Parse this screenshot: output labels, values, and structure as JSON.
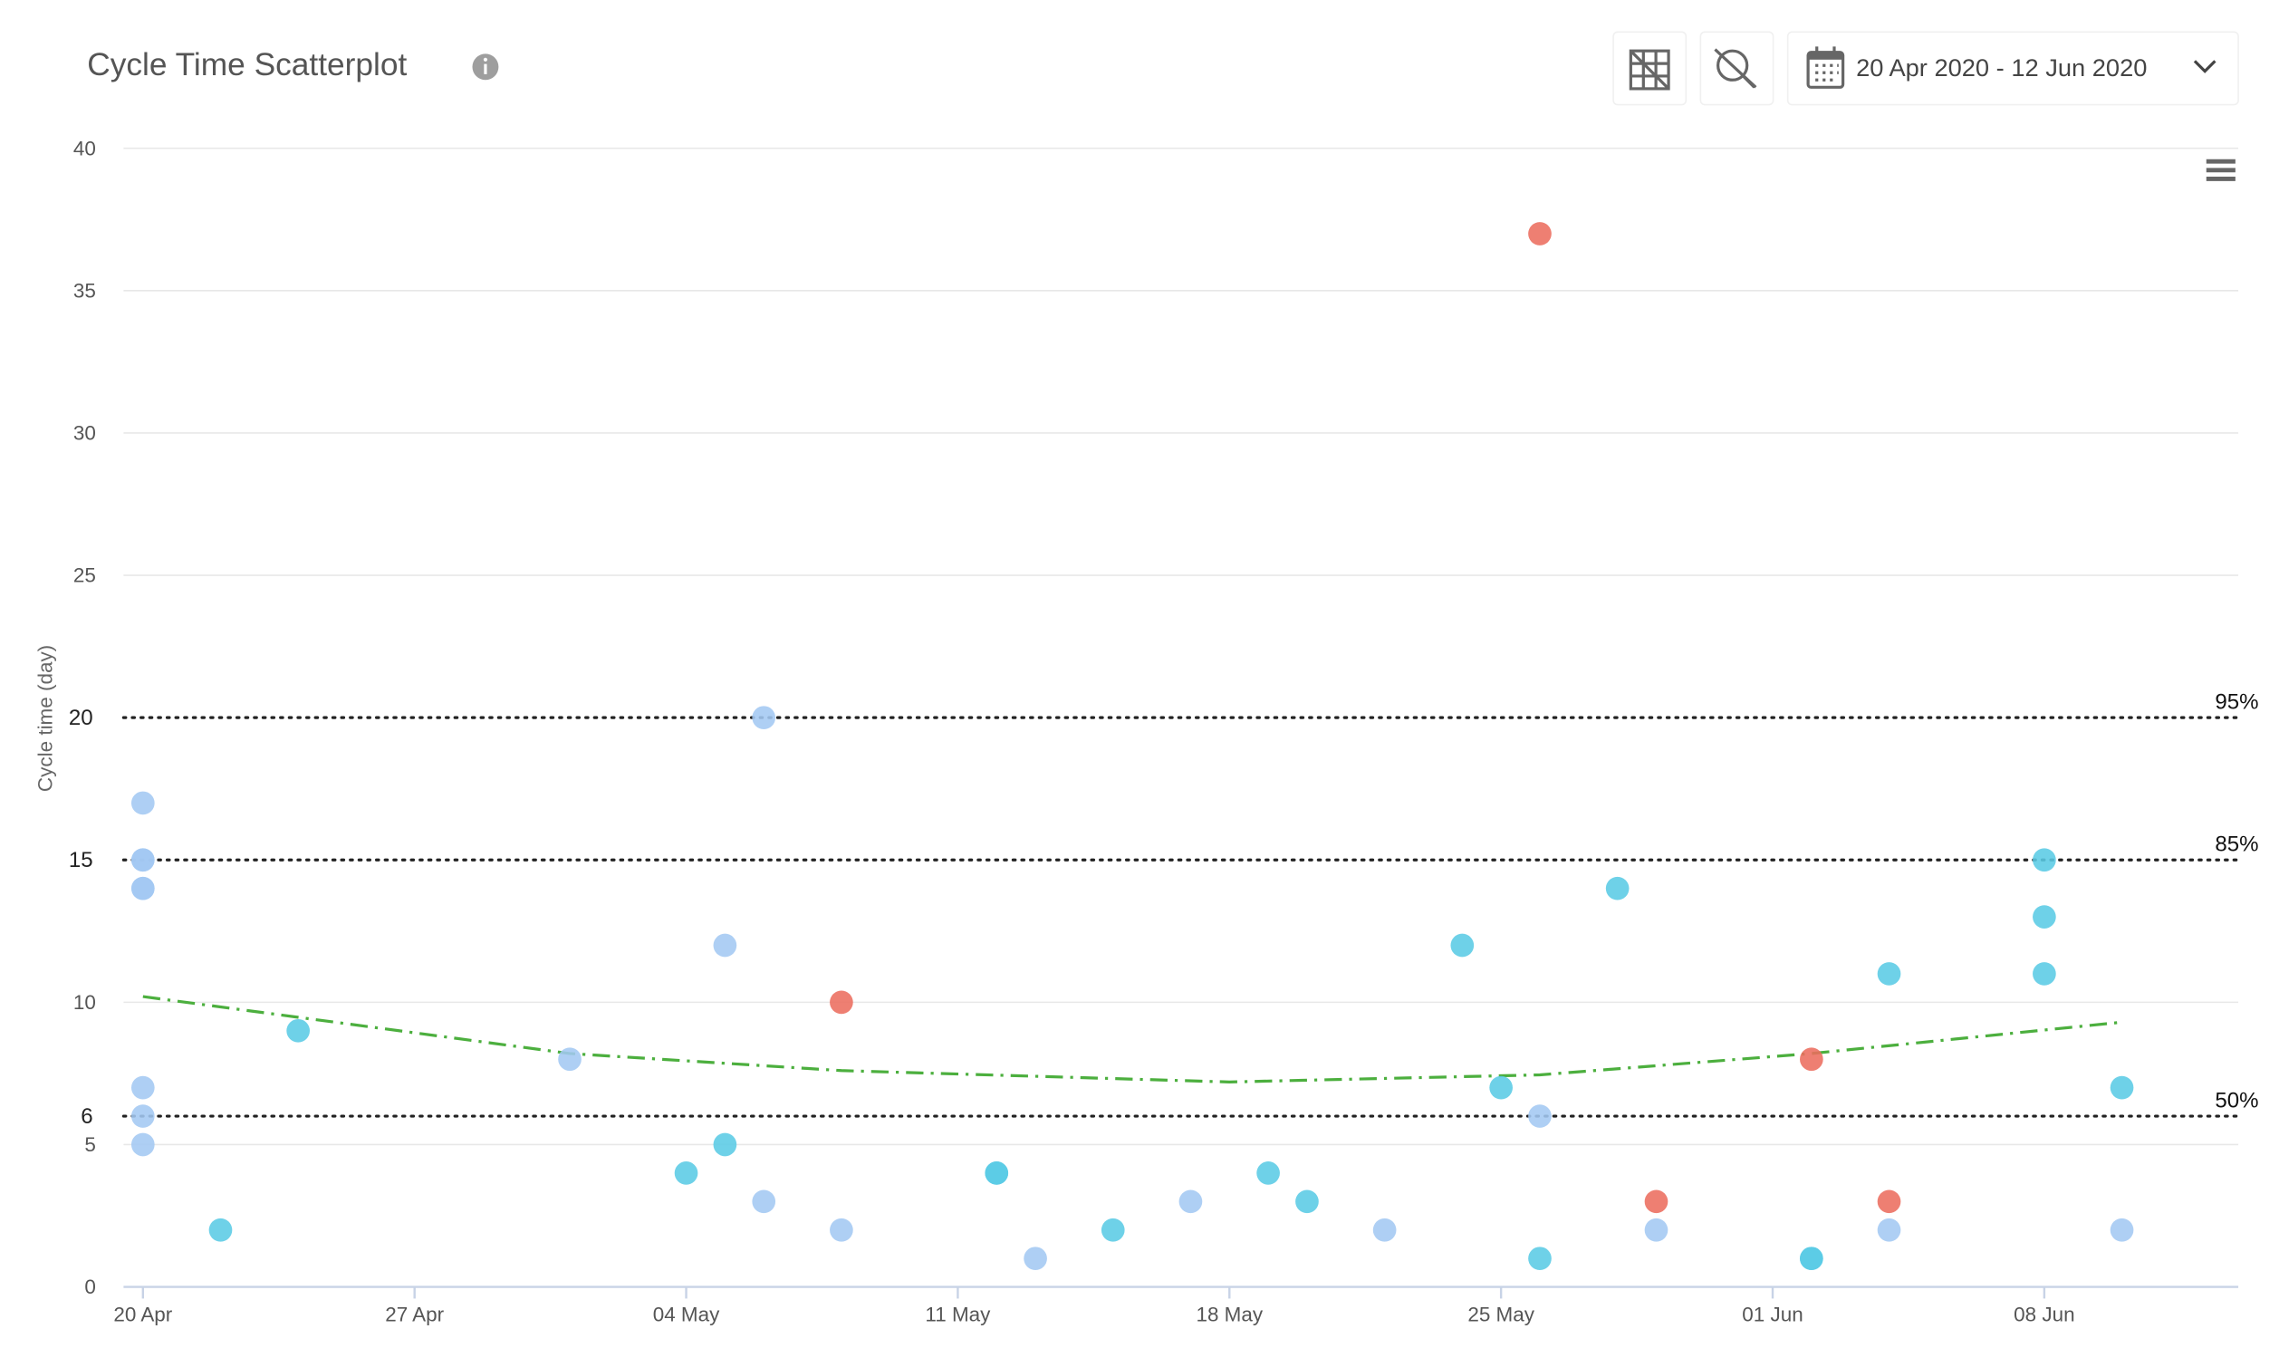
{
  "chart_data": {
    "type": "scatter",
    "title": "Cycle Time Scatterplot",
    "date_range": "20 Apr 2020 - 12 Jun 2020",
    "y_label": "Cycle time (day)",
    "xlim": [
      "2020-04-19T12:00Z",
      "2020-06-13T00:00Z"
    ],
    "xticks": [
      {
        "value": "2020-04-20",
        "label": "20 Apr"
      },
      {
        "value": "2020-04-27",
        "label": "27 Apr"
      },
      {
        "value": "2020-05-04",
        "label": "04 May"
      },
      {
        "value": "2020-05-11",
        "label": "11 May"
      },
      {
        "value": "2020-05-18",
        "label": "18 May"
      },
      {
        "value": "2020-05-25",
        "label": "25 May"
      },
      {
        "value": "2020-06-01",
        "label": "01 Jun"
      },
      {
        "value": "2020-06-08",
        "label": "08 Jun"
      }
    ],
    "ylim": [
      0,
      40
    ],
    "yticks": [
      0,
      5,
      6,
      10,
      15,
      20,
      25,
      30,
      35,
      40
    ],
    "grid": true,
    "series": [
      {
        "color": "#a3c8f2",
        "x": [
          "2020-04-20",
          "2020-04-20",
          "2020-04-20",
          "2020-04-20",
          "2020-04-20",
          "2020-04-20",
          "2020-04-20",
          "2020-04-20",
          "2020-05-01",
          "2020-05-05",
          "2020-05-06",
          "2020-05-06",
          "2020-05-08",
          "2020-05-13",
          "2020-05-17",
          "2020-05-22",
          "2020-05-26",
          "2020-05-29",
          "2020-06-04",
          "2020-06-10"
        ],
        "values": [
          17,
          15,
          15,
          14,
          14,
          7,
          6,
          5,
          8,
          12,
          20,
          3,
          2,
          1,
          3,
          2,
          6,
          2,
          2,
          2
        ]
      },
      {
        "color": "#5acbe5",
        "x": [
          "2020-04-22",
          "2020-04-24",
          "2020-05-04",
          "2020-05-05",
          "2020-05-12",
          "2020-05-12",
          "2020-05-15",
          "2020-05-19",
          "2020-05-20",
          "2020-05-24",
          "2020-05-25",
          "2020-05-26",
          "2020-05-28",
          "2020-06-02",
          "2020-06-02",
          "2020-06-04",
          "2020-06-08",
          "2020-06-08",
          "2020-06-08",
          "2020-06-10"
        ],
        "values": [
          2,
          9,
          4,
          5,
          4,
          4,
          2,
          4,
          3,
          12,
          7,
          1,
          14,
          1,
          1,
          11,
          15,
          13,
          11,
          7
        ]
      },
      {
        "color": "#ec6d5e",
        "x": [
          "2020-05-08",
          "2020-05-26",
          "2020-05-29",
          "2020-06-02",
          "2020-06-04"
        ],
        "values": [
          10,
          37,
          3,
          8,
          3
        ]
      }
    ],
    "trend": {
      "color": "#4caf3e",
      "x": [
        "2020-04-20",
        "2020-05-01",
        "2020-05-08",
        "2020-05-18",
        "2020-05-26",
        "2020-06-02",
        "2020-06-10"
      ],
      "values": [
        10.2,
        8.2,
        7.6,
        7.2,
        7.45,
        8.2,
        9.3
      ]
    },
    "percentiles": [
      {
        "value": 20,
        "label": "95%"
      },
      {
        "value": 15,
        "label": "85%"
      },
      {
        "value": 6,
        "label": "50%"
      }
    ]
  }
}
